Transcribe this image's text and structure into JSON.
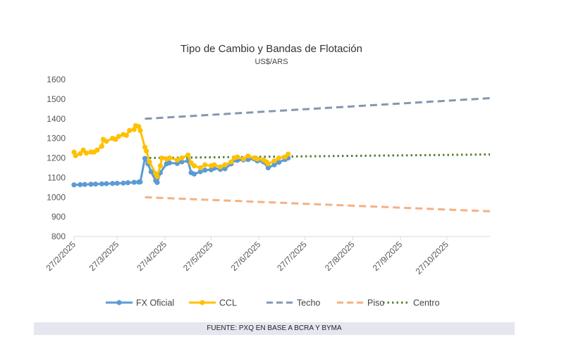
{
  "chart_data": {
    "type": "line",
    "title": "Tipo de Cambio y Bandas de Flotación",
    "subtitle": "US$/ARS",
    "ylim": [
      800,
      1600
    ],
    "yticks": [
      800,
      900,
      1000,
      1100,
      1200,
      1300,
      1400,
      1500,
      1600
    ],
    "xlim": [
      "2025-02-27",
      "2025-11-24"
    ],
    "xtick_labels": [
      "27/2/2025",
      "27/3/2025",
      "27/4/2025",
      "27/5/2025",
      "27/6/2025",
      "27/7/2025",
      "27/8/2025",
      "27/9/2025",
      "27/10/2025"
    ],
    "xtick_dates": [
      "2025-02-27",
      "2025-03-27",
      "2025-04-27",
      "2025-05-27",
      "2025-06-27",
      "2025-07-27",
      "2025-08-27",
      "2025-09-27",
      "2025-10-27"
    ],
    "grid": false,
    "legend_placement": "bottom",
    "series": [
      {
        "name": "FX Oficial",
        "color": "#5b9bd5",
        "style": "line-marker",
        "points": [
          [
            "2025-02-27",
            1063
          ],
          [
            "2025-03-03",
            1064
          ],
          [
            "2025-03-06",
            1065
          ],
          [
            "2025-03-10",
            1066
          ],
          [
            "2025-03-13",
            1067
          ],
          [
            "2025-03-17",
            1068
          ],
          [
            "2025-03-20",
            1069
          ],
          [
            "2025-03-24",
            1070
          ],
          [
            "2025-03-27",
            1071
          ],
          [
            "2025-03-31",
            1072
          ],
          [
            "2025-04-03",
            1074
          ],
          [
            "2025-04-07",
            1076
          ],
          [
            "2025-04-10",
            1077
          ],
          [
            "2025-04-11",
            1078
          ],
          [
            "2025-04-14",
            1198
          ],
          [
            "2025-04-16",
            1170
          ],
          [
            "2025-04-18",
            1130
          ],
          [
            "2025-04-21",
            1085
          ],
          [
            "2025-04-22",
            1075
          ],
          [
            "2025-04-24",
            1125
          ],
          [
            "2025-04-28",
            1170
          ],
          [
            "2025-04-30",
            1175
          ],
          [
            "2025-05-05",
            1172
          ],
          [
            "2025-05-08",
            1180
          ],
          [
            "2025-05-12",
            1185
          ],
          [
            "2025-05-14",
            1125
          ],
          [
            "2025-05-16",
            1118
          ],
          [
            "2025-05-20",
            1130
          ],
          [
            "2025-05-23",
            1138
          ],
          [
            "2025-05-27",
            1140
          ],
          [
            "2025-05-29",
            1148
          ],
          [
            "2025-06-02",
            1142
          ],
          [
            "2025-06-05",
            1145
          ],
          [
            "2025-06-09",
            1170
          ],
          [
            "2025-06-11",
            1190
          ],
          [
            "2025-06-13",
            1188
          ],
          [
            "2025-06-17",
            1190
          ],
          [
            "2025-06-20",
            1192
          ],
          [
            "2025-06-24",
            1195
          ],
          [
            "2025-06-26",
            1185
          ],
          [
            "2025-06-30",
            1180
          ],
          [
            "2025-07-02",
            1170
          ],
          [
            "2025-07-03",
            1150
          ],
          [
            "2025-07-07",
            1165
          ],
          [
            "2025-07-10",
            1178
          ],
          [
            "2025-07-14",
            1192
          ],
          [
            "2025-07-16",
            1200
          ]
        ]
      },
      {
        "name": "CCL",
        "color": "#ffc000",
        "style": "line-marker",
        "points": [
          [
            "2025-02-27",
            1230
          ],
          [
            "2025-02-28",
            1212
          ],
          [
            "2025-03-03",
            1222
          ],
          [
            "2025-03-05",
            1240
          ],
          [
            "2025-03-07",
            1225
          ],
          [
            "2025-03-10",
            1230
          ],
          [
            "2025-03-12",
            1230
          ],
          [
            "2025-03-14",
            1240
          ],
          [
            "2025-03-17",
            1260
          ],
          [
            "2025-03-18",
            1295
          ],
          [
            "2025-03-20",
            1285
          ],
          [
            "2025-03-24",
            1300
          ],
          [
            "2025-03-26",
            1295
          ],
          [
            "2025-03-28",
            1310
          ],
          [
            "2025-03-31",
            1320
          ],
          [
            "2025-04-02",
            1315
          ],
          [
            "2025-04-04",
            1340
          ],
          [
            "2025-04-07",
            1345
          ],
          [
            "2025-04-08",
            1365
          ],
          [
            "2025-04-10",
            1360
          ],
          [
            "2025-04-11",
            1340
          ],
          [
            "2025-04-14",
            1255
          ],
          [
            "2025-04-15",
            1235
          ],
          [
            "2025-04-17",
            1180
          ],
          [
            "2025-04-21",
            1120
          ],
          [
            "2025-04-22",
            1105
          ],
          [
            "2025-04-24",
            1160
          ],
          [
            "2025-04-25",
            1200
          ],
          [
            "2025-04-28",
            1195
          ],
          [
            "2025-04-30",
            1200
          ],
          [
            "2025-05-05",
            1190
          ],
          [
            "2025-05-08",
            1200
          ],
          [
            "2025-05-12",
            1215
          ],
          [
            "2025-05-14",
            1175
          ],
          [
            "2025-05-16",
            1160
          ],
          [
            "2025-05-20",
            1150
          ],
          [
            "2025-05-23",
            1165
          ],
          [
            "2025-05-27",
            1160
          ],
          [
            "2025-05-29",
            1165
          ],
          [
            "2025-06-02",
            1155
          ],
          [
            "2025-06-05",
            1165
          ],
          [
            "2025-06-09",
            1180
          ],
          [
            "2025-06-11",
            1200
          ],
          [
            "2025-06-13",
            1205
          ],
          [
            "2025-06-17",
            1195
          ],
          [
            "2025-06-20",
            1210
          ],
          [
            "2025-06-24",
            1200
          ],
          [
            "2025-06-26",
            1195
          ],
          [
            "2025-06-30",
            1190
          ],
          [
            "2025-07-02",
            1180
          ],
          [
            "2025-07-03",
            1170
          ],
          [
            "2025-07-07",
            1185
          ],
          [
            "2025-07-10",
            1200
          ],
          [
            "2025-07-14",
            1205
          ],
          [
            "2025-07-16",
            1220
          ]
        ]
      },
      {
        "name": "Techo",
        "color": "#8497b0",
        "style": "dashed",
        "points": [
          [
            "2025-04-14",
            1400
          ],
          [
            "2025-11-24",
            1505
          ]
        ]
      },
      {
        "name": "Piso",
        "color": "#f4b183",
        "style": "dashed",
        "points": [
          [
            "2025-04-14",
            1000
          ],
          [
            "2025-11-24",
            928
          ]
        ]
      },
      {
        "name": "Centro",
        "color": "#548235",
        "style": "dotted",
        "points": [
          [
            "2025-04-14",
            1200
          ],
          [
            "2025-11-24",
            1218
          ]
        ]
      }
    ]
  },
  "source": "FUENTE: PXQ EN BASE A BCRA Y BYMA"
}
